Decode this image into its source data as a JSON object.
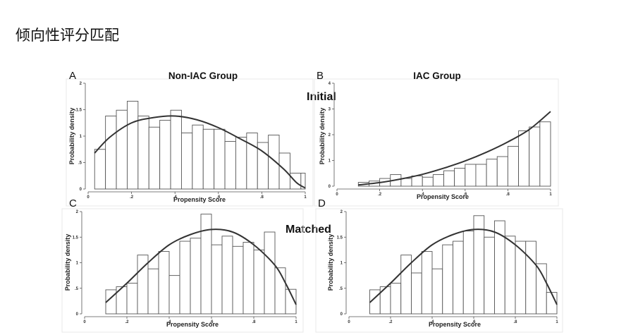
{
  "page": {
    "title": "倾向性评分匹配"
  },
  "figure": {
    "row_labels": [
      "Initial",
      "Matched"
    ]
  },
  "chart_data": [
    {
      "type": "bar",
      "panel": "A",
      "title": "Non-IAC Group",
      "xlabel": "Propensity Score",
      "ylabel": "Probability density",
      "xlim": [
        0,
        1
      ],
      "ylim": [
        0,
        2
      ],
      "xticks": [
        0,
        0.2,
        0.4,
        0.6,
        0.8,
        1
      ],
      "xtick_labels": [
        "0",
        ".2",
        ".4",
        ".6",
        ".8",
        "1"
      ],
      "yticks": [
        0,
        0.5,
        1,
        1.5,
        2
      ],
      "ytick_labels": [
        "0",
        ".5",
        "1",
        "1.5",
        "2"
      ],
      "bins": [
        {
          "x0": 0.03,
          "x1": 0.08,
          "y": 0.75
        },
        {
          "x0": 0.08,
          "x1": 0.13,
          "y": 1.38
        },
        {
          "x0": 0.13,
          "x1": 0.18,
          "y": 1.49
        },
        {
          "x0": 0.18,
          "x1": 0.23,
          "y": 1.66
        },
        {
          "x0": 0.23,
          "x1": 0.28,
          "y": 1.38
        },
        {
          "x0": 0.28,
          "x1": 0.33,
          "y": 1.17
        },
        {
          "x0": 0.33,
          "x1": 0.38,
          "y": 1.3
        },
        {
          "x0": 0.38,
          "x1": 0.43,
          "y": 1.49
        },
        {
          "x0": 0.43,
          "x1": 0.48,
          "y": 1.06
        },
        {
          "x0": 0.48,
          "x1": 0.53,
          "y": 1.21
        },
        {
          "x0": 0.53,
          "x1": 0.58,
          "y": 1.13
        },
        {
          "x0": 0.58,
          "x1": 0.63,
          "y": 1.13
        },
        {
          "x0": 0.63,
          "x1": 0.68,
          "y": 0.9
        },
        {
          "x0": 0.68,
          "x1": 0.73,
          "y": 0.98
        },
        {
          "x0": 0.73,
          "x1": 0.78,
          "y": 1.06
        },
        {
          "x0": 0.78,
          "x1": 0.83,
          "y": 0.88
        },
        {
          "x0": 0.83,
          "x1": 0.88,
          "y": 1.02
        },
        {
          "x0": 0.88,
          "x1": 0.93,
          "y": 0.68
        },
        {
          "x0": 0.93,
          "x1": 0.98,
          "y": 0.3
        },
        {
          "x0": 0.98,
          "x1": 1.0,
          "y": 0.3
        }
      ],
      "curve": [
        [
          0.03,
          0.68
        ],
        [
          0.1,
          0.98
        ],
        [
          0.2,
          1.25
        ],
        [
          0.3,
          1.35
        ],
        [
          0.4,
          1.38
        ],
        [
          0.5,
          1.31
        ],
        [
          0.6,
          1.16
        ],
        [
          0.7,
          0.95
        ],
        [
          0.8,
          0.72
        ],
        [
          0.9,
          0.38
        ],
        [
          0.96,
          0.12
        ],
        [
          1.0,
          0.02
        ]
      ]
    },
    {
      "type": "bar",
      "panel": "B",
      "title": "IAC Group",
      "xlabel": "Propensity Score",
      "ylabel": "Probability density",
      "xlim": [
        0,
        1
      ],
      "ylim": [
        0,
        4
      ],
      "xticks": [
        0,
        0.2,
        0.4,
        0.6,
        0.8,
        1
      ],
      "xtick_labels": [
        "0",
        ".2",
        ".4",
        ".6",
        ".8",
        "1"
      ],
      "yticks": [
        0,
        1,
        2,
        3,
        4
      ],
      "ytick_labels": [
        "0",
        "1",
        "2",
        "3",
        "4"
      ],
      "bins": [
        {
          "x0": 0.1,
          "x1": 0.15,
          "y": 0.15
        },
        {
          "x0": 0.15,
          "x1": 0.2,
          "y": 0.2
        },
        {
          "x0": 0.2,
          "x1": 0.25,
          "y": 0.3
        },
        {
          "x0": 0.25,
          "x1": 0.3,
          "y": 0.45
        },
        {
          "x0": 0.3,
          "x1": 0.35,
          "y": 0.3
        },
        {
          "x0": 0.35,
          "x1": 0.4,
          "y": 0.4
        },
        {
          "x0": 0.4,
          "x1": 0.45,
          "y": 0.35
        },
        {
          "x0": 0.45,
          "x1": 0.5,
          "y": 0.45
        },
        {
          "x0": 0.5,
          "x1": 0.55,
          "y": 0.6
        },
        {
          "x0": 0.55,
          "x1": 0.6,
          "y": 0.7
        },
        {
          "x0": 0.6,
          "x1": 0.65,
          "y": 0.85
        },
        {
          "x0": 0.65,
          "x1": 0.7,
          "y": 0.85
        },
        {
          "x0": 0.7,
          "x1": 0.75,
          "y": 1.05
        },
        {
          "x0": 0.75,
          "x1": 0.8,
          "y": 1.15
        },
        {
          "x0": 0.8,
          "x1": 0.85,
          "y": 1.55
        },
        {
          "x0": 0.85,
          "x1": 0.9,
          "y": 2.15
        },
        {
          "x0": 0.9,
          "x1": 0.95,
          "y": 2.3
        },
        {
          "x0": 0.95,
          "x1": 1.0,
          "y": 2.5
        }
      ],
      "curve": [
        [
          0.1,
          0.05
        ],
        [
          0.2,
          0.14
        ],
        [
          0.3,
          0.28
        ],
        [
          0.4,
          0.46
        ],
        [
          0.5,
          0.7
        ],
        [
          0.6,
          0.98
        ],
        [
          0.7,
          1.32
        ],
        [
          0.8,
          1.72
        ],
        [
          0.9,
          2.2
        ],
        [
          1.0,
          2.9
        ]
      ]
    },
    {
      "type": "bar",
      "panel": "C",
      "title": "",
      "xlabel": "Propensity Score",
      "ylabel": "Probability density",
      "xlim": [
        0,
        1
      ],
      "ylim": [
        0,
        2
      ],
      "xticks": [
        0,
        0.2,
        0.4,
        0.6,
        0.8,
        1
      ],
      "xtick_labels": [
        "0",
        ".2",
        ".4",
        ".6",
        ".8",
        "1"
      ],
      "yticks": [
        0,
        0.5,
        1,
        1.5,
        2
      ],
      "ytick_labels": [
        "0",
        ".5",
        "1",
        "1.5",
        "2"
      ],
      "bins": [
        {
          "x0": 0.1,
          "x1": 0.15,
          "y": 0.47
        },
        {
          "x0": 0.15,
          "x1": 0.2,
          "y": 0.53
        },
        {
          "x0": 0.2,
          "x1": 0.25,
          "y": 0.6
        },
        {
          "x0": 0.25,
          "x1": 0.3,
          "y": 1.15
        },
        {
          "x0": 0.3,
          "x1": 0.35,
          "y": 0.88
        },
        {
          "x0": 0.35,
          "x1": 0.4,
          "y": 1.22
        },
        {
          "x0": 0.4,
          "x1": 0.45,
          "y": 0.75
        },
        {
          "x0": 0.45,
          "x1": 0.5,
          "y": 1.42
        },
        {
          "x0": 0.5,
          "x1": 0.55,
          "y": 1.48
        },
        {
          "x0": 0.55,
          "x1": 0.6,
          "y": 1.95
        },
        {
          "x0": 0.6,
          "x1": 0.65,
          "y": 1.35
        },
        {
          "x0": 0.65,
          "x1": 0.7,
          "y": 1.52
        },
        {
          "x0": 0.7,
          "x1": 0.75,
          "y": 1.32
        },
        {
          "x0": 0.75,
          "x1": 0.8,
          "y": 1.4
        },
        {
          "x0": 0.8,
          "x1": 0.85,
          "y": 1.25
        },
        {
          "x0": 0.85,
          "x1": 0.9,
          "y": 1.6
        },
        {
          "x0": 0.9,
          "x1": 0.95,
          "y": 0.9
        },
        {
          "x0": 0.95,
          "x1": 1.0,
          "y": 0.48
        }
      ],
      "curve": [
        [
          0.1,
          0.22
        ],
        [
          0.2,
          0.6
        ],
        [
          0.3,
          1.0
        ],
        [
          0.4,
          1.35
        ],
        [
          0.5,
          1.55
        ],
        [
          0.6,
          1.65
        ],
        [
          0.7,
          1.6
        ],
        [
          0.8,
          1.35
        ],
        [
          0.9,
          0.95
        ],
        [
          0.95,
          0.6
        ],
        [
          1.0,
          0.18
        ]
      ]
    },
    {
      "type": "bar",
      "panel": "D",
      "title": "",
      "xlabel": "Propensity Score",
      "ylabel": "Probability density",
      "xlim": [
        0,
        1
      ],
      "ylim": [
        0,
        2
      ],
      "xticks": [
        0,
        0.2,
        0.4,
        0.6,
        0.8,
        1
      ],
      "xtick_labels": [
        "0",
        ".2",
        ".4",
        ".6",
        ".8",
        "1"
      ],
      "yticks": [
        0,
        0.5,
        1,
        1.5,
        2
      ],
      "ytick_labels": [
        "0",
        ".5",
        "1",
        "1.5",
        "2"
      ],
      "bins": [
        {
          "x0": 0.1,
          "x1": 0.15,
          "y": 0.47
        },
        {
          "x0": 0.15,
          "x1": 0.2,
          "y": 0.53
        },
        {
          "x0": 0.2,
          "x1": 0.25,
          "y": 0.6
        },
        {
          "x0": 0.25,
          "x1": 0.3,
          "y": 1.15
        },
        {
          "x0": 0.3,
          "x1": 0.35,
          "y": 0.8
        },
        {
          "x0": 0.35,
          "x1": 0.4,
          "y": 1.22
        },
        {
          "x0": 0.4,
          "x1": 0.45,
          "y": 0.88
        },
        {
          "x0": 0.45,
          "x1": 0.5,
          "y": 1.35
        },
        {
          "x0": 0.5,
          "x1": 0.55,
          "y": 1.42
        },
        {
          "x0": 0.55,
          "x1": 0.6,
          "y": 1.62
        },
        {
          "x0": 0.6,
          "x1": 0.65,
          "y": 1.92
        },
        {
          "x0": 0.65,
          "x1": 0.7,
          "y": 1.5
        },
        {
          "x0": 0.7,
          "x1": 0.75,
          "y": 1.82
        },
        {
          "x0": 0.75,
          "x1": 0.8,
          "y": 1.52
        },
        {
          "x0": 0.8,
          "x1": 0.85,
          "y": 1.42
        },
        {
          "x0": 0.85,
          "x1": 0.9,
          "y": 1.42
        },
        {
          "x0": 0.9,
          "x1": 0.95,
          "y": 0.98
        },
        {
          "x0": 0.95,
          "x1": 1.0,
          "y": 0.42
        }
      ],
      "curve": [
        [
          0.1,
          0.22
        ],
        [
          0.2,
          0.6
        ],
        [
          0.3,
          1.0
        ],
        [
          0.4,
          1.35
        ],
        [
          0.5,
          1.55
        ],
        [
          0.6,
          1.65
        ],
        [
          0.7,
          1.6
        ],
        [
          0.8,
          1.35
        ],
        [
          0.9,
          0.95
        ],
        [
          0.95,
          0.6
        ],
        [
          1.0,
          0.18
        ]
      ]
    }
  ]
}
